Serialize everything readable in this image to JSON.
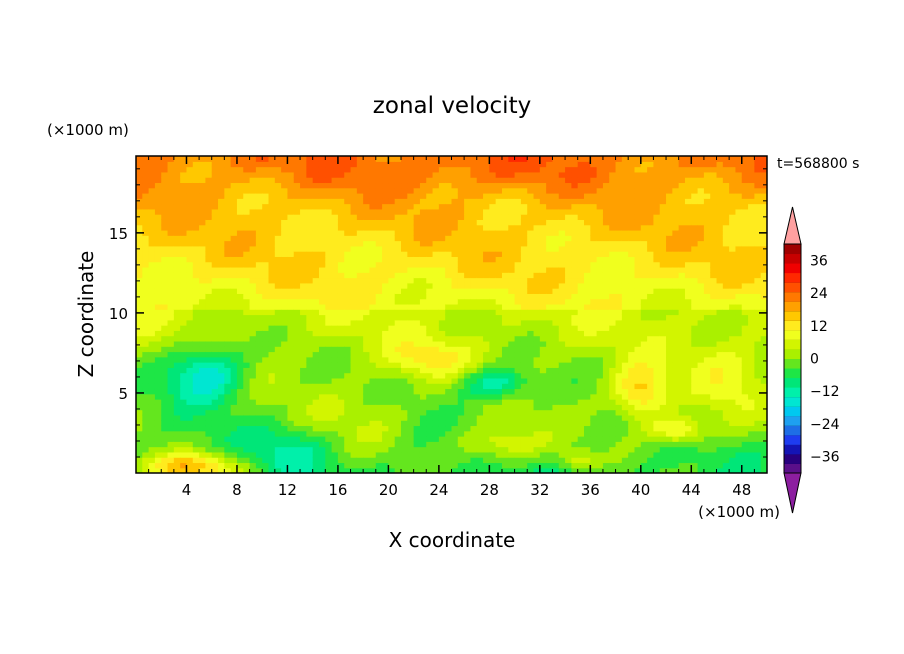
{
  "chart_data": {
    "type": "heatmap",
    "title": "zonal velocity",
    "xlabel": "X coordinate",
    "ylabel": "Z coordinate",
    "x_unit": "(×1000 m)",
    "y_unit": "(×1000 m)",
    "time_label": "t=568800 s",
    "xlim": [
      0,
      50
    ],
    "ylim": [
      0,
      19.8
    ],
    "x_ticks": [
      4,
      8,
      12,
      16,
      20,
      24,
      28,
      32,
      36,
      40,
      44,
      48
    ],
    "y_ticks": [
      5,
      10,
      15
    ],
    "colorbar": {
      "labels": [
        36,
        24,
        12,
        0,
        -12,
        -24,
        -36
      ],
      "levels": [
        -42,
        -39,
        -36,
        -33,
        -30,
        -27,
        -24,
        -21,
        -18,
        -15,
        -12,
        -9,
        -6,
        -3,
        0,
        3,
        6,
        9,
        12,
        15,
        18,
        21,
        24,
        27,
        30,
        33,
        36,
        39,
        42
      ],
      "colors": [
        "#5a0f8a",
        "#28007e",
        "#1414b4",
        "#1e3cf0",
        "#1e6ee6",
        "#1ea0f0",
        "#00c8f0",
        "#00e6d2",
        "#00f0aa",
        "#00e678",
        "#1ee646",
        "#64e61e",
        "#aaf000",
        "#d2f500",
        "#f0ff1e",
        "#ffeb1e",
        "#ffc800",
        "#ffa000",
        "#ff7800",
        "#ff5000",
        "#ff2800",
        "#f00000",
        "#c80000",
        "#a00000"
      ],
      "under_color": "#8c1ea0",
      "over_color": "#ffa0a0"
    },
    "field_features": [
      {
        "x": 25,
        "z": 18.5,
        "value": 12
      },
      {
        "x": 25,
        "z": 14.5,
        "value": 6
      },
      {
        "x": 25,
        "z": 11.5,
        "value": 2
      },
      {
        "x": 25,
        "z": 8.5,
        "value": -7
      },
      {
        "x": 5.5,
        "z": 6.3,
        "value": -22
      },
      {
        "x": 28.5,
        "z": 5.5,
        "value": -20
      },
      {
        "x": 23,
        "z": 7.2,
        "value": 3
      },
      {
        "x": 40.5,
        "z": 4.5,
        "value": 9
      },
      {
        "x": 29,
        "z": 1.8,
        "value": 5
      },
      {
        "x": 4.5,
        "z": 0.6,
        "value": 12
      },
      {
        "x": 18,
        "z": 3.5,
        "value": -4
      },
      {
        "x": 47,
        "z": 5.5,
        "value": -1
      },
      {
        "x": 12,
        "z": 1.5,
        "value": -8
      }
    ]
  }
}
